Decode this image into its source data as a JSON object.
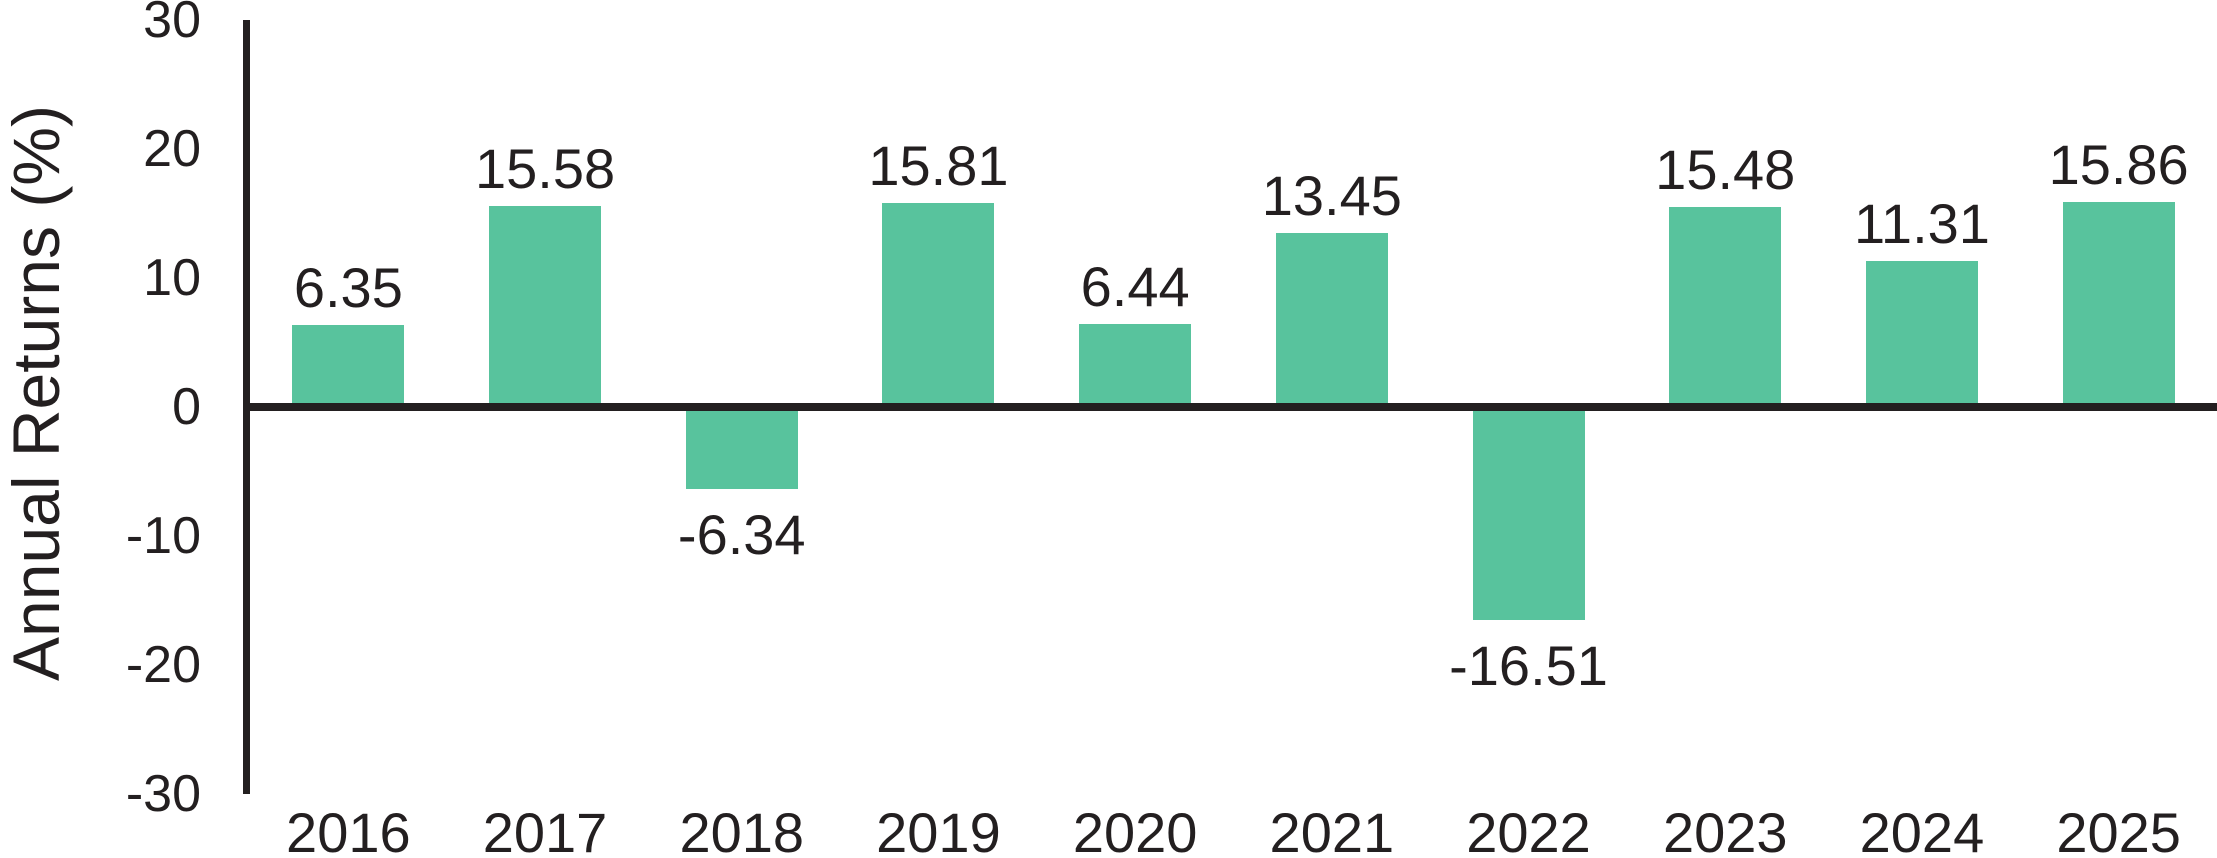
{
  "chart_data": {
    "type": "bar",
    "title": "",
    "ylabel": "Annual Returns (%)",
    "xlabel": "",
    "categories": [
      "2016",
      "2017",
      "2018",
      "2019",
      "2020",
      "2021",
      "2022",
      "2023",
      "2024",
      "2025"
    ],
    "values": [
      6.35,
      15.58,
      -6.34,
      15.81,
      6.44,
      13.45,
      -16.51,
      15.48,
      11.31,
      15.86
    ],
    "value_labels": [
      "6.35",
      "15.58",
      "-6.34",
      "15.81",
      "6.44",
      "13.45",
      "-16.51",
      "15.48",
      "11.31",
      "15.86"
    ],
    "yticks": [
      30,
      20,
      10,
      0,
      -10,
      -20,
      -30
    ],
    "ytick_labels": [
      "30",
      "20",
      "10",
      "0",
      "-10",
      "-20",
      "-30"
    ],
    "ylim": [
      -30,
      30
    ],
    "grid": false,
    "legend": null,
    "bar_color": "#58C39D",
    "axis_color": "#231F20",
    "text_color": "#231F20"
  }
}
